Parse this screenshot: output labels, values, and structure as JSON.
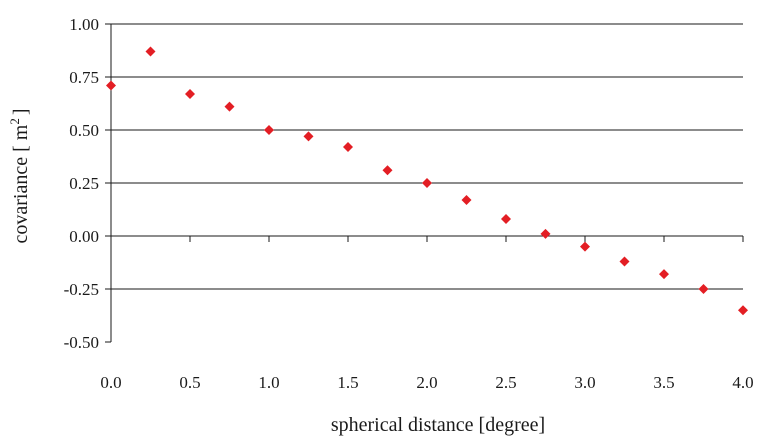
{
  "chart_data": {
    "type": "scatter",
    "xlabel": "spherical distance [degree]",
    "ylabel_main": "covariance [ m",
    "ylabel_sup": "2",
    "ylabel_end": "]",
    "xlim": [
      0,
      4
    ],
    "ylim": [
      -0.5,
      1.0
    ],
    "x_ticks": [
      0.0,
      0.5,
      1.0,
      1.5,
      2.0,
      2.5,
      3.0,
      3.5,
      4.0
    ],
    "x_tick_labels": [
      "0.0",
      "0.5",
      "1.0",
      "1.5",
      "2.0",
      "2.5",
      "3.0",
      "3.5",
      "4.0"
    ],
    "y_ticks": [
      1.0,
      0.75,
      0.5,
      0.25,
      0.0,
      -0.25,
      -0.5
    ],
    "y_tick_labels": [
      "1.00",
      "0.75",
      "0.50",
      "0.25",
      "0.00",
      "-0.25",
      "-0.50"
    ],
    "grid": "horizontal",
    "marker": "diamond",
    "marker_color": "#e31e24",
    "x": [
      0.0,
      0.25,
      0.5,
      0.75,
      1.0,
      1.25,
      1.5,
      1.75,
      2.0,
      2.25,
      2.5,
      2.75,
      3.0,
      3.25,
      3.5,
      3.75,
      4.0
    ],
    "y": [
      0.71,
      0.87,
      0.67,
      0.61,
      0.5,
      0.47,
      0.42,
      0.31,
      0.25,
      0.17,
      0.08,
      0.01,
      -0.05,
      -0.12,
      -0.18,
      -0.25,
      -0.35
    ]
  }
}
